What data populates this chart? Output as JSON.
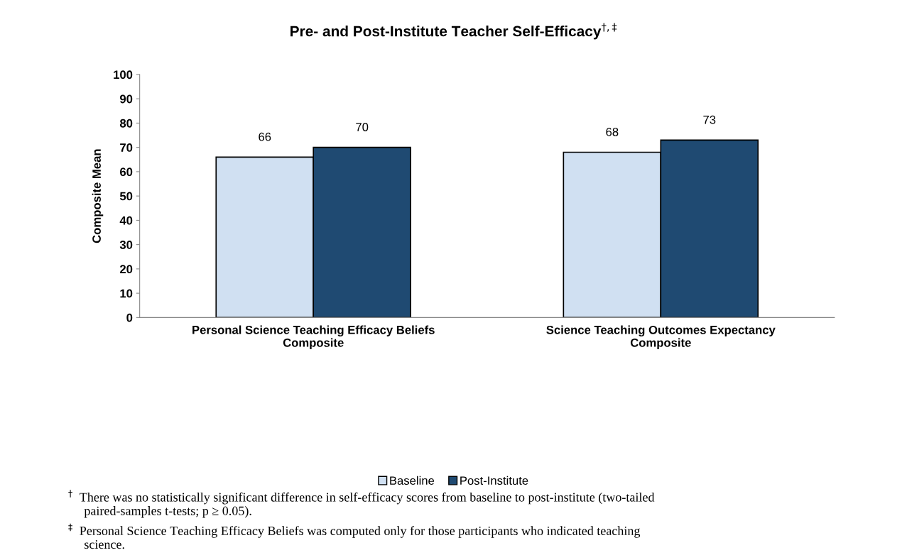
{
  "chart_data": {
    "type": "bar",
    "title": "Pre- and Post-Institute Teacher Self-Efficacy$^{†,‡}$",
    "ylabel": "Composite Mean",
    "categories": [
      "Personal Science Teaching Efficacy Beliefs\nComposite",
      "Science Teaching Outcomes Expectancy\nComposite"
    ],
    "series": [
      {
        "name": "Baseline",
        "color": "#d0e0f2",
        "values": [
          66,
          68
        ]
      },
      {
        "name": "Post-Institute",
        "color": "#1f4a72",
        "values": [
          70,
          73
        ]
      }
    ],
    "ylim": [
      0,
      100
    ],
    "yticks": [
      0,
      10,
      20,
      30,
      40,
      50,
      60,
      70,
      80,
      90,
      100
    ],
    "data_labels": true,
    "legend": "bottom",
    "grid": false,
    "annotations": [
      "$^{†}$  There was no statistically significant difference in self-efficacy scores from baseline to post-institute (two-tailed\n     paired-samples t-tests; p ≥ 0.05).",
      "$^{‡}$  Personal Science Teaching Efficacy Beliefs was computed only for those participants who indicated teaching\n     science."
    ]
  }
}
